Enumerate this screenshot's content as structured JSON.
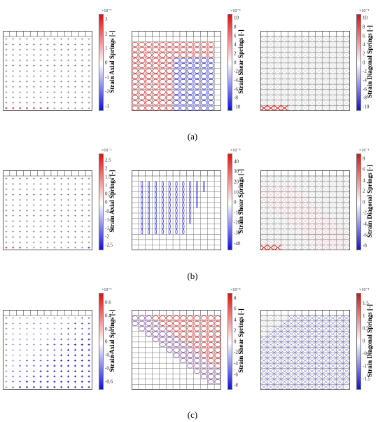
{
  "rows": [
    {
      "caption": "(a)",
      "panels": [
        {
          "kind": "axial",
          "colorbar_label": "Strain Axial Springs [-]",
          "exponent": "×10⁻²",
          "range": [
            -3.2,
            3.4
          ],
          "ticks": [
            "3",
            "2",
            "1",
            "0",
            "-1",
            "-2",
            "-3"
          ],
          "tick_values": [
            3,
            2,
            1,
            0,
            -1,
            -2,
            -3
          ]
        },
        {
          "kind": "shear",
          "colorbar_label": "Strain Shear Springs [-]",
          "exponent": "×10⁻⁴",
          "range": [
            -10.5,
            11
          ],
          "ticks": [
            "10",
            "8",
            "6",
            "4",
            "2",
            "0",
            "-2",
            "-4",
            "-6",
            "-8",
            "-10"
          ],
          "tick_values": [
            10,
            8,
            6,
            4,
            2,
            0,
            -2,
            -4,
            -6,
            -8,
            -10
          ]
        },
        {
          "kind": "diagonal",
          "colorbar_label": "Strain Diagonal Springs [-]",
          "exponent": "×10⁻³",
          "range": [
            -10.5,
            11
          ],
          "ticks": [
            "10",
            "8",
            "6",
            "4",
            "2",
            "0",
            "-2",
            "-4",
            "-6",
            "-8",
            "-10"
          ],
          "tick_values": [
            10,
            8,
            6,
            4,
            2,
            0,
            -2,
            -4,
            -6,
            -8,
            -10
          ]
        }
      ]
    },
    {
      "caption": "(b)",
      "panels": [
        {
          "kind": "axial",
          "colorbar_label": "Strain Axial Springs [-]",
          "exponent": "×10⁻²",
          "range": [
            -2.7,
            2.9
          ],
          "ticks": [
            "2.5",
            "2",
            "1.5",
            "1",
            "0.5",
            "0",
            "-0.5",
            "-1",
            "-1.5",
            "-2",
            "-2.5"
          ],
          "tick_values": [
            2.5,
            2,
            1.5,
            1,
            0.5,
            0,
            -0.5,
            -1,
            -1.5,
            -2,
            -2.5
          ]
        },
        {
          "kind": "shear",
          "colorbar_label": "Strain Shear Springs [-]",
          "exponent": "×10⁻⁴",
          "range": [
            -45,
            48
          ],
          "ticks": [
            "40",
            "30",
            "20",
            "10",
            "0",
            "-10",
            "-20",
            "-30",
            "-40"
          ],
          "tick_values": [
            40,
            30,
            20,
            10,
            0,
            -10,
            -20,
            -30,
            -40
          ]
        },
        {
          "kind": "diagonal",
          "colorbar_label": "Strain Diagonal Springs [-]",
          "exponent": "×10⁻³",
          "range": [
            -8.5,
            9
          ],
          "ticks": [
            "8",
            "6",
            "4",
            "2",
            "0",
            "-2",
            "-4",
            "-6",
            "-8"
          ],
          "tick_values": [
            8,
            6,
            4,
            2,
            0,
            -2,
            -4,
            -6,
            -8
          ]
        }
      ]
    },
    {
      "caption": "(c)",
      "panels": [
        {
          "kind": "axial",
          "colorbar_label": "Strain Axial Springs [-]",
          "exponent": "×10⁻²",
          "range": [
            -0.7,
            0.75
          ],
          "ticks": [
            "0.6",
            "0.4",
            "0.2",
            "0",
            "-0.2",
            "-0.4",
            "-0.6"
          ],
          "tick_values": [
            0.6,
            0.4,
            0.2,
            0,
            -0.2,
            -0.4,
            -0.6
          ]
        },
        {
          "kind": "shear",
          "colorbar_label": "Strain Shear Springs [-]",
          "exponent": "×10⁻⁴",
          "range": [
            -8.5,
            9
          ],
          "ticks": [
            "8",
            "6",
            "4",
            "2",
            "0",
            "-2",
            "-4",
            "-6",
            "-8"
          ],
          "tick_values": [
            8,
            6,
            4,
            2,
            0,
            -2,
            -4,
            -6,
            -8
          ]
        },
        {
          "kind": "diagonal",
          "colorbar_label": "Strain Diagonal Springs [-]",
          "exponent": "×10⁻³",
          "range": [
            -1.85,
            1.9
          ],
          "ticks": [
            "1.5",
            "1",
            "0.5",
            "0",
            "-0.5",
            "-1",
            "-1.5"
          ],
          "tick_values": [
            1.5,
            1,
            0.5,
            0,
            -0.5,
            -1,
            -1.5
          ]
        }
      ]
    }
  ],
  "colors": {
    "positive": "#e01010",
    "negative": "#1010e0",
    "neutral": "#ffffff",
    "grid": "#555555"
  }
}
